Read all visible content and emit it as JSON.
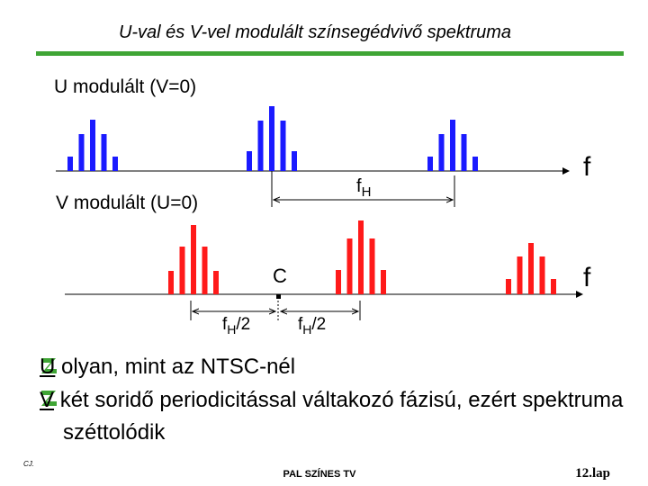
{
  "header": {
    "title": "U-val és V-vel modulált színsegédvivő spektruma"
  },
  "diagram": {
    "u_label": "U modulált (V=0)",
    "u_axis": "f",
    "fh": {
      "main": "f",
      "sub": "H"
    },
    "v_label": "V modulált (U=0)",
    "v_axis": "f",
    "c_label": "C",
    "half_left": {
      "main": "f",
      "sub": "H",
      "suffix": "/2"
    },
    "half_right": {
      "main": "f",
      "sub": "H",
      "suffix": "/2"
    }
  },
  "bullets": [
    {
      "key": "U",
      "text": "olyan, mint az NTSC-nél"
    },
    {
      "key": "V",
      "text": "két soridő periodicitással váltakozó fázisú, ezért spektruma széttolódik"
    }
  ],
  "footer": {
    "author": "CJ.",
    "center": "PAL SZÍNES TV",
    "page": "12.lap"
  }
}
